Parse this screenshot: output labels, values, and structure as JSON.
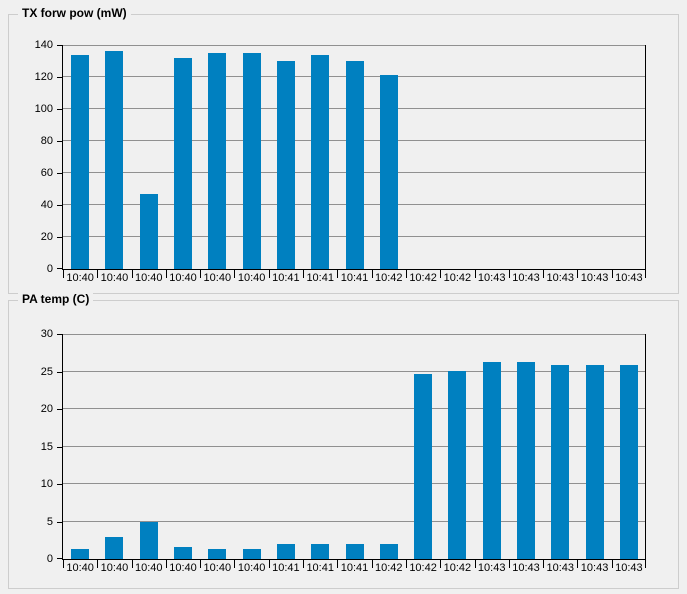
{
  "window": {
    "background": "#f0f0f0"
  },
  "colors": {
    "bar": "#0080c0",
    "grid": "#909090",
    "axis": "#000000",
    "box_border": "#cdcdcd",
    "text": "#000000"
  },
  "panels": [
    {
      "title": "TX forw pow (mW)"
    },
    {
      "title": "PA temp (C)"
    }
  ],
  "chart_data": [
    {
      "type": "bar",
      "title": "TX forw pow (mW)",
      "categories": [
        "10:40",
        "10:40",
        "10:40",
        "10:40",
        "10:40",
        "10:40",
        "10:41",
        "10:41",
        "10:41",
        "10:42",
        "10:42",
        "10:42",
        "10:43",
        "10:43",
        "10:43",
        "10:43",
        "10:43"
      ],
      "values": [
        134,
        136,
        47,
        132,
        135,
        135,
        130,
        134,
        130,
        121,
        null,
        null,
        null,
        null,
        null,
        null,
        null
      ],
      "xlabel": "",
      "ylabel": "",
      "ylim": [
        0,
        140
      ],
      "ytick_step": 20,
      "grid": true,
      "legend": "none"
    },
    {
      "type": "bar",
      "title": "PA temp (C)",
      "categories": [
        "10:40",
        "10:40",
        "10:40",
        "10:40",
        "10:40",
        "10:40",
        "10:41",
        "10:41",
        "10:41",
        "10:42",
        "10:42",
        "10:42",
        "10:43",
        "10:43",
        "10:43",
        "10:43",
        "10:43"
      ],
      "values": [
        1.3,
        2.9,
        4.9,
        1.6,
        1.3,
        1.3,
        2,
        2,
        2,
        2,
        24.6,
        25.1,
        26.3,
        26.3,
        25.9,
        25.9,
        25.9
      ],
      "xlabel": "",
      "ylabel": "",
      "ylim": [
        0,
        30
      ],
      "ytick_step": 5,
      "grid": true,
      "legend": "none"
    }
  ]
}
